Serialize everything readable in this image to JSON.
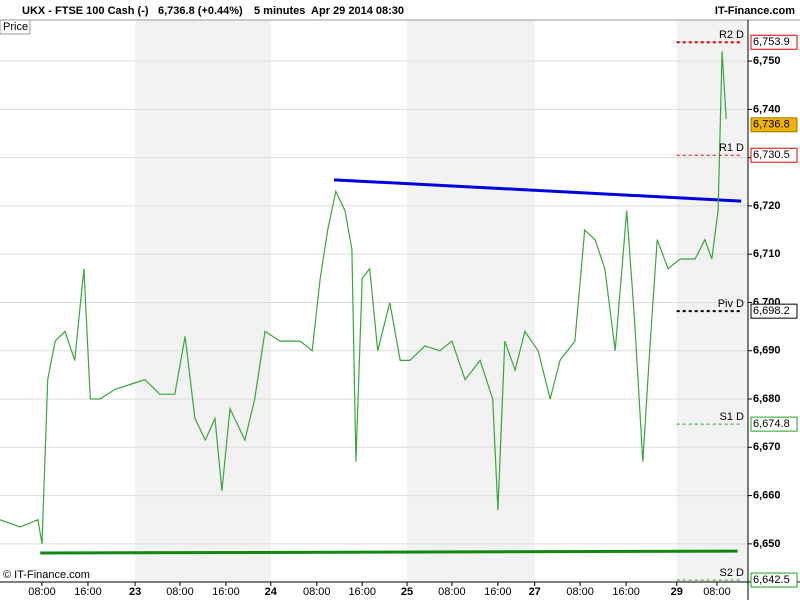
{
  "chart_data": {
    "type": "line",
    "title": "UKX - FTSE 100 Cash (-)",
    "price_text": "6,736.8 (+0.44%)",
    "subtitle": "5 minutes  Apr 29 2014 08:30",
    "source": "IT-Finance.com",
    "y_label": "Price",
    "copyright": "© IT-Finance.com",
    "xlim": [
      0,
      130.1
    ],
    "ylim": [
      6642.1,
      6755.4
    ],
    "grid": true,
    "xticks": [
      {
        "value": 7.3,
        "label": "08:00"
      },
      {
        "value": 15.3,
        "label": "16:00"
      },
      {
        "value": 23.5,
        "label": "23"
      },
      {
        "value": 31.3,
        "label": "08:00"
      },
      {
        "value": 39.3,
        "label": "16:00"
      },
      {
        "value": 47.1,
        "label": "24"
      },
      {
        "value": 55.1,
        "label": "08:00"
      },
      {
        "value": 63.0,
        "label": "16:00"
      },
      {
        "value": 70.8,
        "label": "25"
      },
      {
        "value": 78.6,
        "label": "08:00"
      },
      {
        "value": 86.6,
        "label": "16:00"
      },
      {
        "value": 93.0,
        "label": "27"
      },
      {
        "value": 100.9,
        "label": "08:00"
      },
      {
        "value": 108.9,
        "label": "16:00"
      },
      {
        "value": 117.7,
        "label": "29"
      },
      {
        "value": 124.7,
        "label": "08:00"
      }
    ],
    "yticks": [
      {
        "value": 6650,
        "label": "6,650"
      },
      {
        "value": 6660,
        "label": "6,660"
      },
      {
        "value": 6670,
        "label": "6,670"
      },
      {
        "value": 6680,
        "label": "6,680"
      },
      {
        "value": 6690,
        "label": "6,690"
      },
      {
        "value": 6700,
        "label": "6,700"
      },
      {
        "value": 6710,
        "label": "6,710"
      },
      {
        "value": 6720,
        "label": "6,720"
      },
      {
        "value": 6730,
        "label": "6,730"
      },
      {
        "value": 6740,
        "label": "6,740"
      },
      {
        "value": 6750,
        "label": "6,750"
      }
    ],
    "series": [
      {
        "name": "UKX",
        "color": "#3aa63a",
        "x": [
          0,
          3.5,
          6.6,
          7.3,
          8.3,
          9.6,
          11.3,
          13.0,
          14.6,
          15.7,
          17.4,
          20.0,
          22.6,
          25.2,
          27.8,
          30.4,
          32.2,
          33.9,
          35.7,
          37.4,
          38.6,
          40.0,
          42.6,
          44.3,
          46.1,
          48.7,
          52.2,
          54.3,
          55.7,
          57.0,
          58.4,
          60.0,
          61.2,
          61.9,
          63.0,
          64.3,
          65.7,
          67.8,
          69.6,
          71.3,
          73.9,
          76.5,
          78.6,
          80.9,
          83.5,
          85.7,
          86.6,
          87.8,
          89.6,
          91.3,
          93.6,
          95.7,
          97.4,
          100.0,
          101.7,
          103.5,
          105.2,
          107.0,
          109.0,
          110.4,
          111.8,
          113.0,
          114.3,
          116.2,
          118.3,
          120.9,
          122.6,
          123.8,
          124.9,
          125.6,
          126.3
        ],
        "values": [
          6655,
          6653.5,
          6655,
          6650,
          6684,
          6692,
          6694,
          6688,
          6707,
          6680,
          6680,
          6682,
          6683,
          6684,
          6681,
          6681,
          6693,
          6676,
          6671.5,
          6676,
          6661,
          6678,
          6671.5,
          6680,
          6694,
          6692,
          6692,
          6690,
          6705,
          6715,
          6723,
          6719,
          6711,
          6667,
          6705,
          6707,
          6690,
          6700,
          6688,
          6688,
          6691,
          6690,
          6692,
          6684,
          6688,
          6680,
          6657,
          6692,
          6686,
          6694,
          6690,
          6680,
          6688,
          6692,
          6715,
          6713,
          6707,
          6690,
          6719,
          6696,
          6667,
          6690,
          6713,
          6707,
          6709,
          6709,
          6713,
          6709,
          6719,
          6752,
          6738
        ]
      }
    ],
    "levels": [
      {
        "name": "R2 D",
        "value": 6753.9,
        "value_label": "6,753.9",
        "color": "#dd0000"
      },
      {
        "name": "R1 D",
        "value": 6730.5,
        "value_label": "6,730.5",
        "color": "#dd0000"
      },
      {
        "name": "Piv D",
        "value": 6698.2,
        "value_label": "6,698.2",
        "color": "#000000"
      },
      {
        "name": "S1 D",
        "value": 6674.8,
        "value_label": "6,674.8",
        "color": "#22a022"
      },
      {
        "name": "S2 D",
        "value": 6642.5,
        "value_label": "6,642.5",
        "color": "#22a022"
      }
    ],
    "last_price": {
      "value": 6736.8,
      "label": "6,736.8",
      "color": "#f0b400"
    },
    "trendlines": [
      {
        "x": [
          58.1,
          128.9
        ],
        "y": [
          6725.4,
          6721
        ],
        "color": "#0000dd"
      },
      {
        "x": [
          7.0,
          128.3
        ],
        "y": [
          6648.1,
          6648.5
        ],
        "color": "#118811"
      }
    ]
  }
}
